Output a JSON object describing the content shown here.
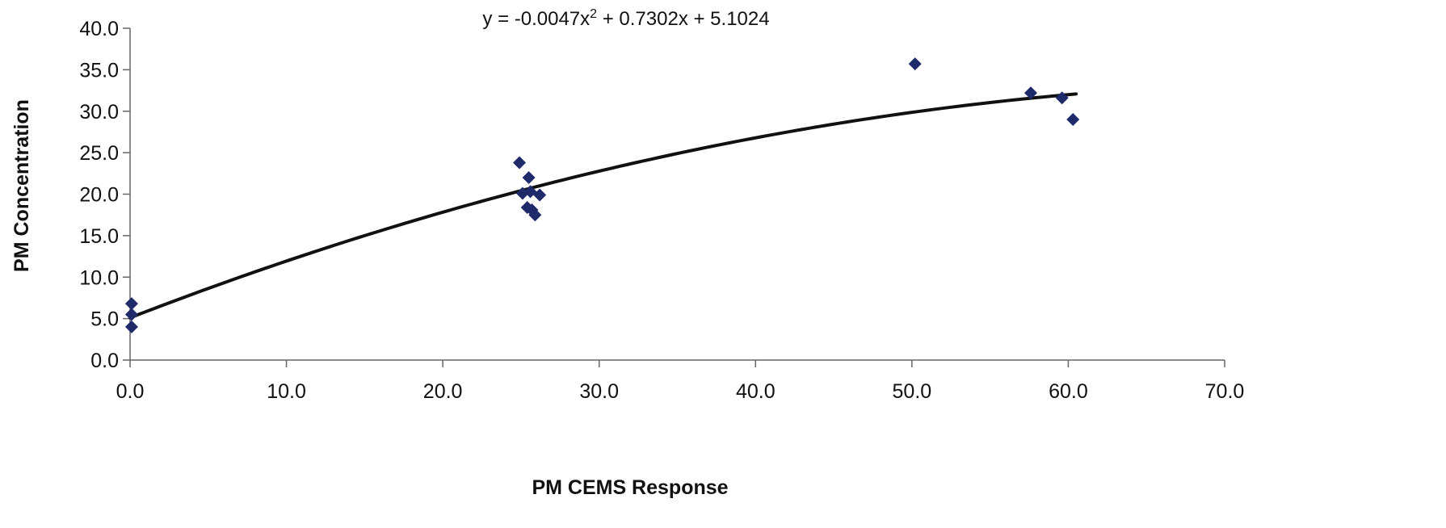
{
  "chart_data": {
    "type": "scatter",
    "title": "",
    "equation": {
      "prefix": "y = -0.0047x",
      "superscript": "2",
      "suffix": " + 0.7302x + 5.1024"
    },
    "xlabel": "PM CEMS Response",
    "ylabel": "PM Concentration",
    "xlim": [
      0,
      70
    ],
    "ylim": [
      0,
      40
    ],
    "xticks": [
      "0.0",
      "10.0",
      "20.0",
      "30.0",
      "40.0",
      "50.0",
      "60.0",
      "70.0"
    ],
    "yticks": [
      "0.0",
      "5.0",
      "10.0",
      "15.0",
      "20.0",
      "25.0",
      "30.0",
      "35.0",
      "40.0"
    ],
    "grid": false,
    "legend": "none",
    "series": [
      {
        "marker": "diamond",
        "color": "#1f2a6b",
        "points": [
          {
            "x": 0.1,
            "y": 6.8
          },
          {
            "x": 0.1,
            "y": 5.5
          },
          {
            "x": 0.1,
            "y": 4.0
          },
          {
            "x": 24.9,
            "y": 23.8
          },
          {
            "x": 25.1,
            "y": 20.1
          },
          {
            "x": 25.5,
            "y": 22.0
          },
          {
            "x": 25.4,
            "y": 18.4
          },
          {
            "x": 25.7,
            "y": 18.1
          },
          {
            "x": 25.9,
            "y": 17.5
          },
          {
            "x": 25.6,
            "y": 20.3
          },
          {
            "x": 26.2,
            "y": 19.9
          },
          {
            "x": 50.2,
            "y": 35.7
          },
          {
            "x": 57.6,
            "y": 32.2
          },
          {
            "x": 59.6,
            "y": 31.6
          },
          {
            "x": 60.3,
            "y": 29.0
          }
        ]
      }
    ],
    "trendline": {
      "type": "polynomial",
      "color": "#111111",
      "coefficients": {
        "a": -0.0047,
        "b": 0.7302,
        "c": 5.1024
      },
      "x_range": [
        0,
        60.5
      ]
    }
  }
}
